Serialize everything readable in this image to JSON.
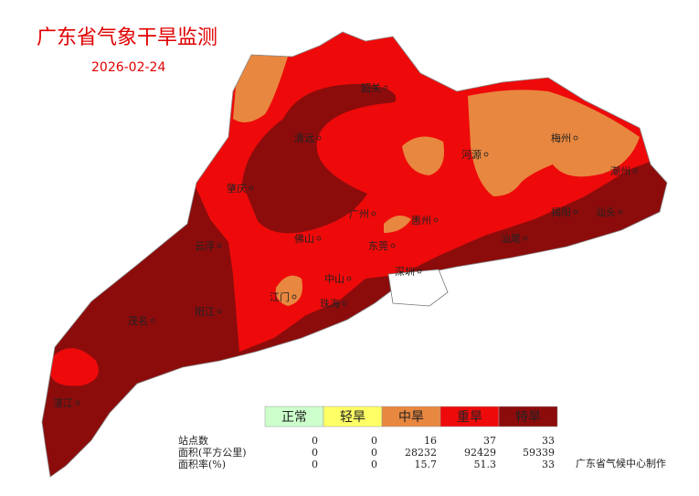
{
  "header": {
    "title": "广东省气象干旱监测",
    "date": "2026-02-24"
  },
  "legend": {
    "levels": [
      {
        "name": "正常",
        "color": "#ccffcc"
      },
      {
        "name": "轻旱",
        "color": "#ffff66"
      },
      {
        "name": "中旱",
        "color": "#e8873f"
      },
      {
        "name": "重旱",
        "color": "#ee0a0a"
      },
      {
        "name": "特旱",
        "color": "#8c0c0c"
      }
    ]
  },
  "table": {
    "rows": [
      {
        "label": "站点数",
        "values": [
          0,
          0,
          16,
          37,
          33
        ]
      },
      {
        "label": "面积(平方公里)",
        "values": [
          0,
          0,
          28232,
          92429,
          59339
        ]
      },
      {
        "label": "面积率(%)",
        "values": [
          0,
          0,
          15.7,
          51.3,
          33
        ]
      }
    ]
  },
  "cities": [
    "韶关",
    "清远",
    "河源",
    "梅州",
    "潮州",
    "肇庆",
    "广州",
    "惠州",
    "揭阳",
    "汕头",
    "云浮",
    "佛山",
    "东莞",
    "汕尾",
    "中山",
    "深圳",
    "江门",
    "珠海",
    "茂名",
    "阳江",
    "湛江"
  ],
  "credit": "广东省气候中心制作"
}
